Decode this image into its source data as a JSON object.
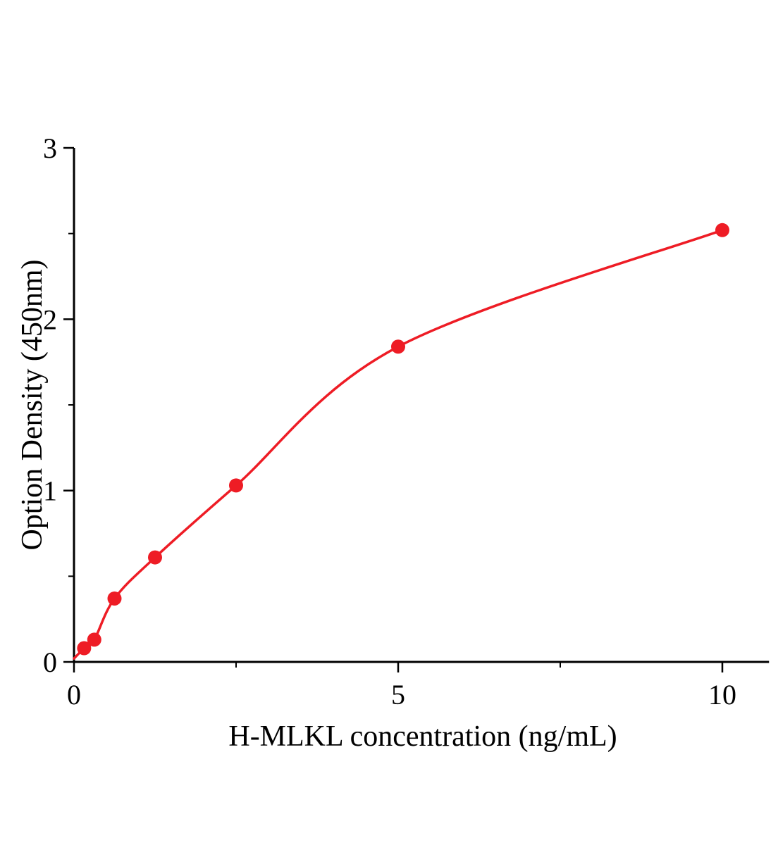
{
  "chart_data": {
    "type": "scatter",
    "title": "",
    "xlabel": "H-MLKL concentration (ng/mL)",
    "ylabel": "Option Density (450nm)",
    "x": [
      0.156,
      0.313,
      0.625,
      1.25,
      2.5,
      5,
      10
    ],
    "y": [
      0.08,
      0.13,
      0.37,
      0.61,
      1.03,
      1.84,
      2.52
    ],
    "curve_style": "smooth saturation fit through points starting at origin",
    "xlim": [
      0,
      10.72
    ],
    "ylim": [
      0,
      3
    ],
    "x_ticks": [
      0,
      5,
      10
    ],
    "y_ticks": [
      0,
      1,
      2,
      3
    ],
    "x_minor_ticks": [
      2.5,
      7.5
    ],
    "y_minor_ticks": [
      0.5,
      1.5,
      2.5
    ],
    "grid": false,
    "legend": null,
    "accent_color": "#ee1c25",
    "axis_color": "#000000"
  }
}
